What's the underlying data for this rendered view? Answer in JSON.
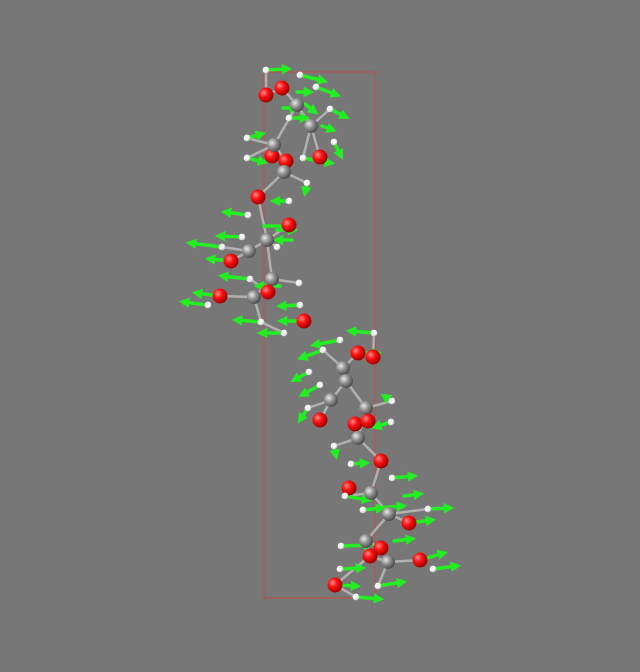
{
  "scene": {
    "background": "#777777",
    "cell_color": "#c84a4a",
    "atom_colors": {
      "oxygen": "#ff0d0d",
      "carbon": "#909090",
      "hydrogen": "#ffffff"
    },
    "vector_color": "#22ee22",
    "bond_color": "#b0b0b0"
  }
}
